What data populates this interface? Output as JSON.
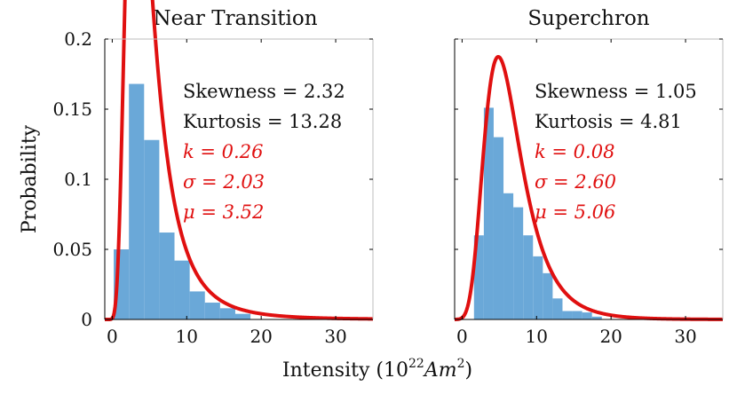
{
  "chart_data": [
    {
      "type": "bar",
      "title": "Near Transition",
      "xlabel": "",
      "ylabel": "Probability",
      "xlim": [
        -1,
        35
      ],
      "ylim": [
        0,
        0.2
      ],
      "xticks": [
        0,
        10,
        20,
        30
      ],
      "yticks": [
        0,
        0.05,
        0.1,
        0.15,
        0.2
      ],
      "ytick_labels": [
        "0",
        "0.05",
        "0.1",
        "0.15",
        "0.2"
      ],
      "bin_width": 2.04,
      "histogram": {
        "bin_starts": [
          0.2,
          2.24,
          4.28,
          6.32,
          8.36,
          10.4,
          12.44,
          14.48,
          16.52
        ],
        "values": [
          0.05,
          0.168,
          0.128,
          0.062,
          0.042,
          0.02,
          0.012,
          0.008,
          0.004
        ]
      },
      "fit": {
        "k": 0.26,
        "sigma": 2.03,
        "mu": 3.52,
        "scale": 2.04,
        "color": "#e01010"
      },
      "stats": {
        "skewness": "Skewness = 2.32",
        "kurtosis": "Kurtosis = 13.28"
      },
      "params": {
        "k": "k = 0.26",
        "sigma": "σ = 2.03",
        "mu": "μ = 3.52"
      }
    },
    {
      "type": "bar",
      "title": "Superchron",
      "xlabel": "",
      "ylabel": "",
      "xlim": [
        -1,
        35
      ],
      "ylim": [
        0,
        0.2
      ],
      "xticks": [
        0,
        10,
        20,
        30
      ],
      "yticks": [
        0,
        0.05,
        0.1,
        0.15,
        0.2
      ],
      "ytick_labels": [
        "",
        "",
        "",
        "",
        ""
      ],
      "bin_width": 1.32,
      "histogram": {
        "bin_starts": [
          1.6,
          2.92,
          4.24,
          5.56,
          6.88,
          8.2,
          9.52,
          10.84,
          12.16,
          13.48,
          14.8,
          16.12,
          17.44
        ],
        "values": [
          0.06,
          0.151,
          0.13,
          0.09,
          0.08,
          0.06,
          0.045,
          0.033,
          0.015,
          0.006,
          0.006,
          0.005,
          0.002
        ]
      },
      "fit": {
        "k": 0.08,
        "sigma": 2.6,
        "mu": 5.06,
        "scale": 1.32,
        "color": "#e01010"
      },
      "stats": {
        "skewness": "Skewness = 1.05",
        "kurtosis": "Kurtosis = 4.81"
      },
      "params": {
        "k": "k = 0.08",
        "sigma": "σ = 2.60",
        "mu": "μ = 5.06"
      }
    }
  ],
  "shared": {
    "ylabel": "Probability",
    "xlabel_prefix": "Intensity (10",
    "xlabel_exp": "22",
    "xlabel_unit": "Am",
    "xlabel_unit_exp": "2",
    "xlabel_suffix": ")",
    "bar_color": "#6aa8d8",
    "fit_color": "#e01010"
  }
}
